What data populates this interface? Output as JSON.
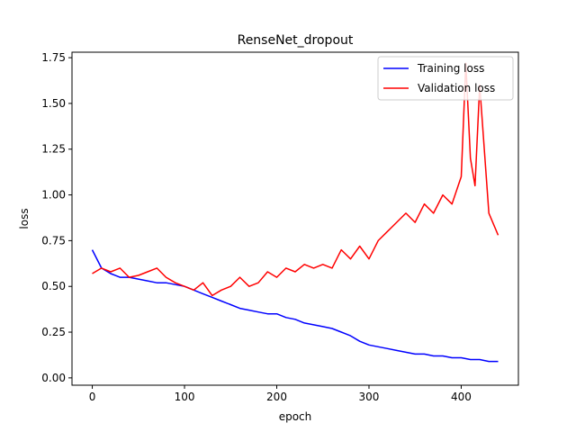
{
  "chart_data": {
    "type": "line",
    "title": "RenseNet_dropout",
    "xlabel": "epoch",
    "ylabel": "loss",
    "xlim": [
      -22,
      462
    ],
    "ylim": [
      -0.04,
      1.78
    ],
    "xticks": [
      0,
      100,
      200,
      300,
      400
    ],
    "yticks": [
      0.0,
      0.25,
      0.5,
      0.75,
      1.0,
      1.25,
      1.5,
      1.75
    ],
    "ytick_labels": [
      "0.00",
      "0.25",
      "0.50",
      "0.75",
      "1.00",
      "1.25",
      "1.50",
      "1.75"
    ],
    "legend_position": "top-right",
    "grid": false,
    "series": [
      {
        "name": "Training loss",
        "color": "#0000ff",
        "x": [
          0,
          10,
          20,
          30,
          40,
          50,
          60,
          70,
          80,
          90,
          100,
          110,
          120,
          130,
          140,
          150,
          160,
          170,
          180,
          190,
          200,
          210,
          220,
          230,
          240,
          250,
          260,
          270,
          280,
          290,
          300,
          310,
          320,
          330,
          340,
          350,
          360,
          370,
          380,
          390,
          400,
          410,
          420,
          430,
          440
        ],
        "y": [
          0.7,
          0.6,
          0.57,
          0.55,
          0.55,
          0.54,
          0.53,
          0.52,
          0.52,
          0.51,
          0.5,
          0.48,
          0.46,
          0.44,
          0.42,
          0.4,
          0.38,
          0.37,
          0.36,
          0.35,
          0.35,
          0.33,
          0.32,
          0.3,
          0.29,
          0.28,
          0.27,
          0.25,
          0.23,
          0.2,
          0.18,
          0.17,
          0.16,
          0.15,
          0.14,
          0.13,
          0.13,
          0.12,
          0.12,
          0.11,
          0.11,
          0.1,
          0.1,
          0.09,
          0.09
        ]
      },
      {
        "name": "Validation loss",
        "color": "#ff0000",
        "x": [
          0,
          10,
          20,
          30,
          40,
          50,
          60,
          70,
          80,
          90,
          100,
          110,
          120,
          130,
          140,
          150,
          160,
          170,
          180,
          190,
          200,
          210,
          220,
          230,
          240,
          250,
          260,
          270,
          280,
          290,
          300,
          310,
          320,
          330,
          340,
          350,
          360,
          370,
          380,
          390,
          400,
          405,
          410,
          415,
          420,
          430,
          440
        ],
        "y": [
          0.57,
          0.6,
          0.58,
          0.6,
          0.55,
          0.56,
          0.58,
          0.6,
          0.55,
          0.52,
          0.5,
          0.48,
          0.52,
          0.45,
          0.48,
          0.5,
          0.55,
          0.5,
          0.52,
          0.58,
          0.55,
          0.6,
          0.58,
          0.62,
          0.6,
          0.62,
          0.6,
          0.7,
          0.65,
          0.72,
          0.65,
          0.75,
          0.8,
          0.85,
          0.9,
          0.85,
          0.95,
          0.9,
          1.0,
          0.95,
          1.1,
          1.72,
          1.2,
          1.05,
          1.6,
          0.9,
          0.78
        ]
      }
    ]
  }
}
